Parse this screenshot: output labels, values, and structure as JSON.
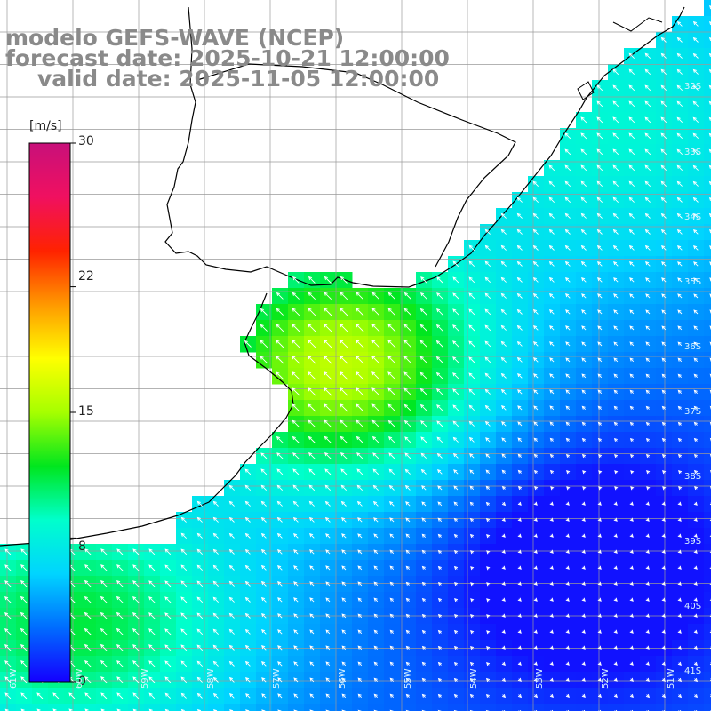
{
  "title": {
    "model": "modelo GEFS-WAVE (NCEP)",
    "forecast": "forecast date: 2025-10-21 12:00:00",
    "valid": "valid date: 2025-11-05 12:00:00"
  },
  "colorbar": {
    "unit": "[m/s]",
    "ticks": [
      "30",
      "22",
      "15",
      "8",
      "0"
    ],
    "tick_values": [
      30,
      22,
      15,
      8,
      0
    ],
    "min": 0,
    "max": 30,
    "stops": [
      "#1400ff",
      "#006cff",
      "#00d4ff",
      "#00ffcc",
      "#00e61e",
      "#a6ff00",
      "#ffff00",
      "#ff9900",
      "#ff2200",
      "#f01060",
      "#c8107a"
    ]
  },
  "grid": {
    "lat_labels": [
      "32S",
      "33S",
      "34S",
      "35S",
      "36S",
      "37S",
      "38S",
      "39S",
      "40S",
      "41S"
    ],
    "lon_labels": [
      "61W",
      "60W",
      "59W",
      "58W",
      "57W",
      "56W",
      "55W",
      "54W",
      "53W",
      "52W",
      "51W"
    ]
  },
  "colors": {
    "land": "#ffffff",
    "coast": "#000000",
    "grid": "#9a9a9a",
    "title": "#8a8a8a",
    "arrow": "#ffffff"
  }
}
